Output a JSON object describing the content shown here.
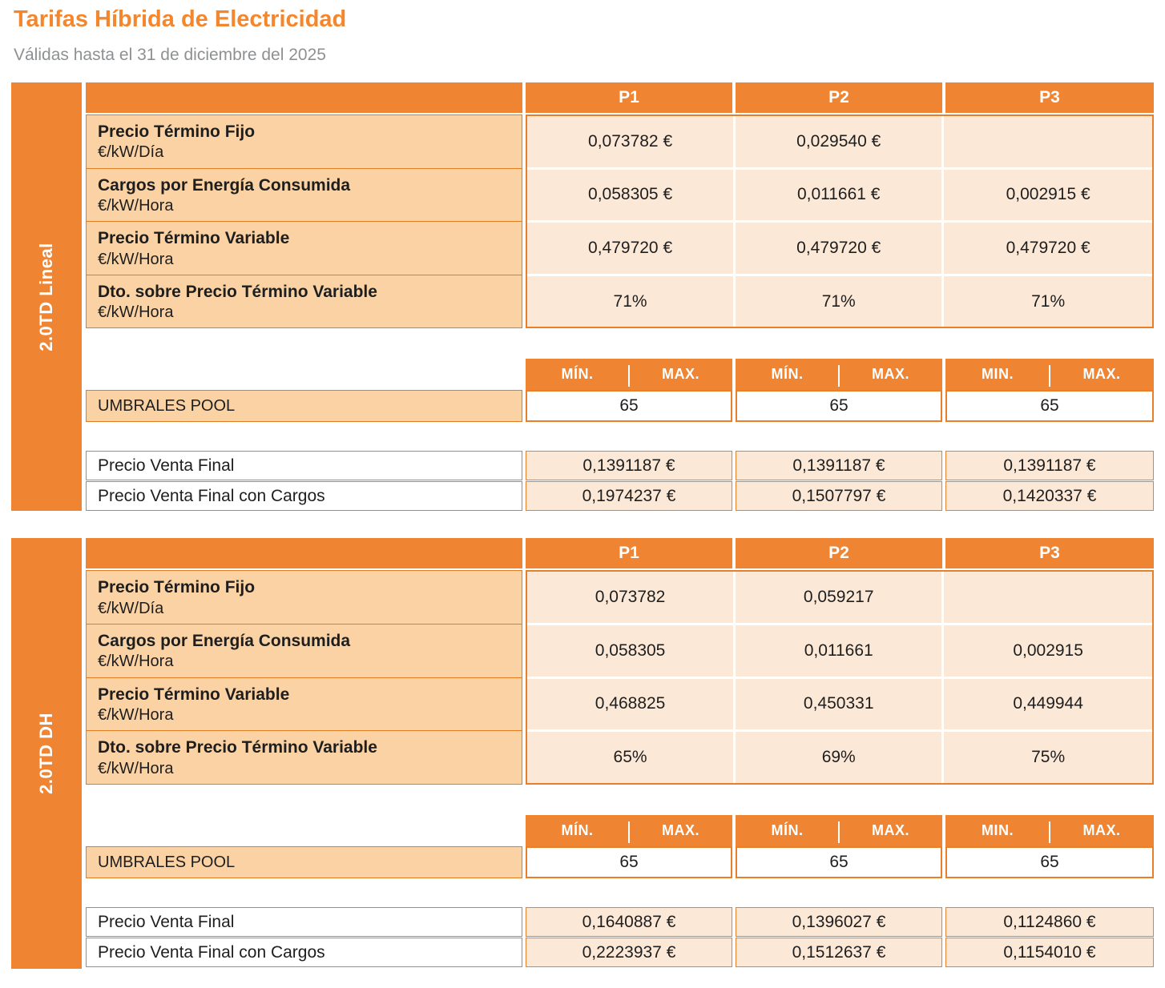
{
  "page": {
    "title": "Tarifas Híbrida de Electricidad",
    "subtitle": "Válidas hasta el 31 de diciembre del 2025"
  },
  "colors": {
    "accent_orange": "#EF8532",
    "border_orange": "#E07C22",
    "label_peach": "#FBD2A4",
    "value_peach": "#FCE8D6",
    "title_orange": "#F4872E",
    "subtitle_gray": "#8E9092"
  },
  "columns": [
    "P1",
    "P2",
    "P3"
  ],
  "minmax_headers": [
    {
      "min": "MÍN.",
      "max": "MAX."
    },
    {
      "min": "MÍN.",
      "max": "MAX."
    },
    {
      "min": "MIN.",
      "max": "MAX."
    }
  ],
  "sections": [
    {
      "sidebar_label": "2.0TD Lineal",
      "rows": [
        {
          "title": "Precio Término Fijo",
          "unit": "€/kW/Día",
          "values": [
            "0,073782 €",
            "0,029540 €",
            ""
          ]
        },
        {
          "title": "Cargos por Energía Consumida",
          "unit": "€/kW/Hora",
          "values": [
            "0,058305 €",
            "0,011661 €",
            "0,002915 €"
          ]
        },
        {
          "title": "Precio Término Variable",
          "unit": "€/kW/Hora",
          "values": [
            "0,479720 €",
            "0,479720 €",
            "0,479720 €"
          ]
        },
        {
          "title": "Dto. sobre Precio Término Variable",
          "unit": "€/kW/Hora",
          "values": [
            "71%",
            "71%",
            "71%"
          ]
        }
      ],
      "umbrales": {
        "label": "UMBRALES POOL",
        "values": [
          "65",
          "65",
          "65"
        ]
      },
      "final_rows": [
        {
          "label": "Precio Venta Final",
          "values": [
            "0,1391187 €",
            "0,1391187 €",
            "0,1391187 €"
          ]
        },
        {
          "label": "Precio Venta Final con Cargos",
          "values": [
            "0,1974237 €",
            "0,1507797 €",
            "0,1420337 €"
          ]
        }
      ]
    },
    {
      "sidebar_label": "2.0TD DH",
      "rows": [
        {
          "title": "Precio Término Fijo",
          "unit": "€/kW/Día",
          "values": [
            "0,073782",
            "0,059217",
            ""
          ]
        },
        {
          "title": "Cargos por Energía Consumida",
          "unit": "€/kW/Hora",
          "values": [
            "0,058305",
            "0,011661",
            "0,002915"
          ]
        },
        {
          "title": "Precio Término Variable",
          "unit": "€/kW/Hora",
          "values": [
            "0,468825",
            "0,450331",
            "0,449944"
          ]
        },
        {
          "title": "Dto. sobre Precio Término Variable",
          "unit": "€/kW/Hora",
          "values": [
            "65%",
            "69%",
            "75%"
          ]
        }
      ],
      "umbrales": {
        "label": "UMBRALES POOL",
        "values": [
          "65",
          "65",
          "65"
        ]
      },
      "final_rows": [
        {
          "label": "Precio Venta Final",
          "values": [
            "0,1640887 €",
            "0,1396027 €",
            "0,1124860 €"
          ]
        },
        {
          "label": "Precio Venta Final con Cargos",
          "values": [
            "0,2223937 €",
            "0,1512637 €",
            "0,1154010 €"
          ]
        }
      ]
    }
  ]
}
